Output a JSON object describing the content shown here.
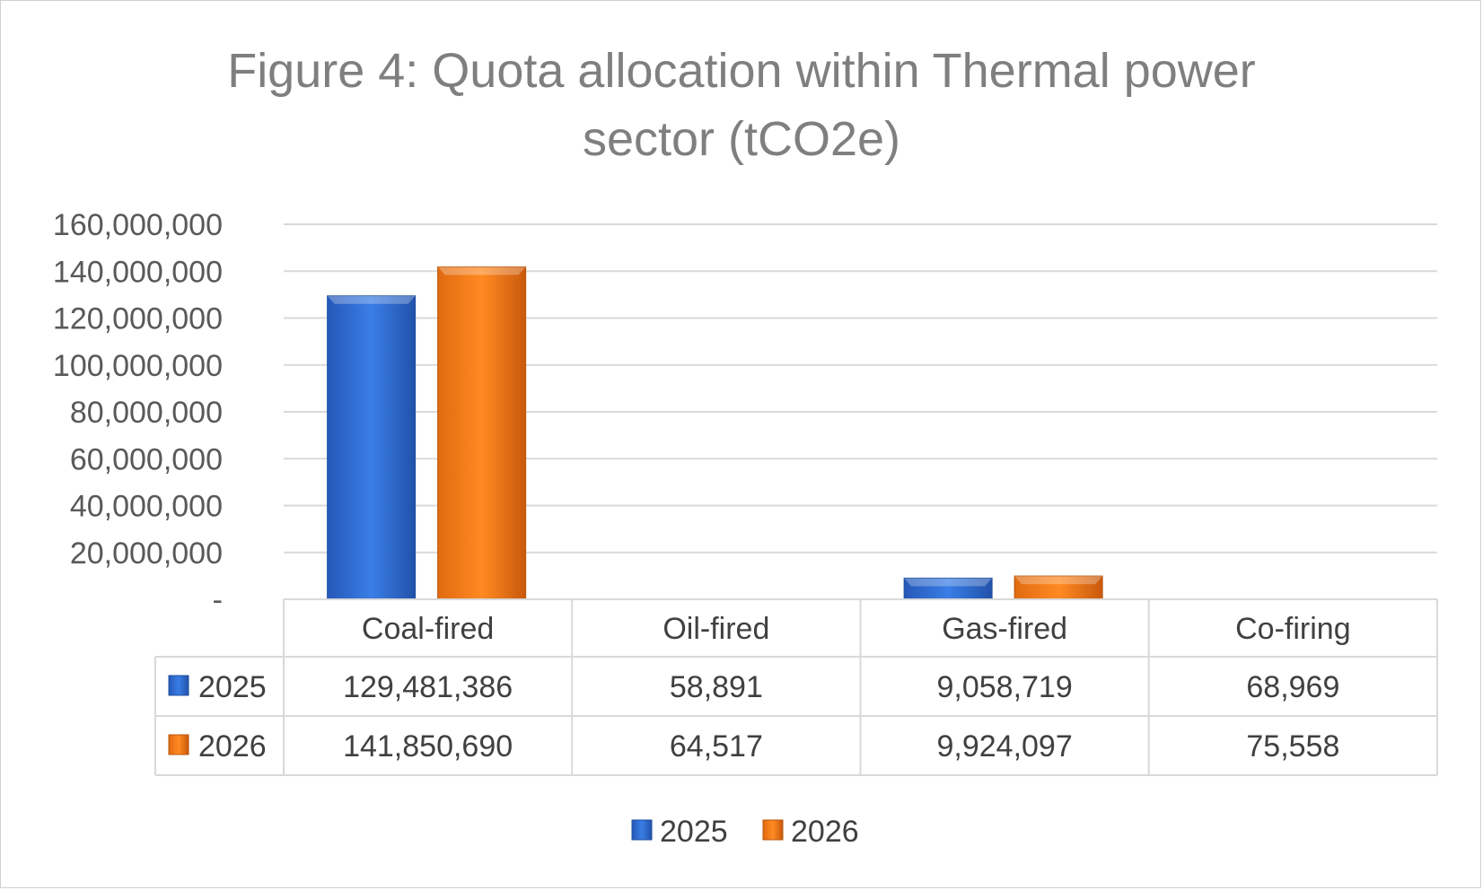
{
  "chart_data": {
    "type": "bar",
    "title_line1": "Figure 4: Quota allocation within Thermal power",
    "title_line2": "sector (tCO2e)",
    "xlabel": "",
    "ylabel": "",
    "categories": [
      "Coal-fired",
      "Oil-fired",
      "Gas-fired",
      "Co-firing"
    ],
    "series": [
      {
        "name": "2025",
        "color": "#2f6fd3",
        "values": [
          129481386,
          58891,
          9058719,
          68969
        ],
        "labels": [
          "129,481,386",
          "58,891",
          "9,058,719",
          "68,969"
        ]
      },
      {
        "name": "2026",
        "color": "#f07c1a",
        "values": [
          141850690,
          64517,
          9924097,
          75558
        ],
        "labels": [
          "141,850,690",
          "64,517",
          "9,924,097",
          "75,558"
        ]
      }
    ],
    "y_ticks": [
      0,
      20000000,
      40000000,
      60000000,
      80000000,
      100000000,
      120000000,
      140000000,
      160000000
    ],
    "y_tick_labels": [
      "-",
      "20,000,000",
      "40,000,000",
      "60,000,000",
      "80,000,000",
      "100,000,000",
      "120,000,000",
      "140,000,000",
      "160,000,000"
    ],
    "ylim": [
      0,
      160000000
    ],
    "grid": true,
    "legend": "bottom-center",
    "data_table": true
  }
}
